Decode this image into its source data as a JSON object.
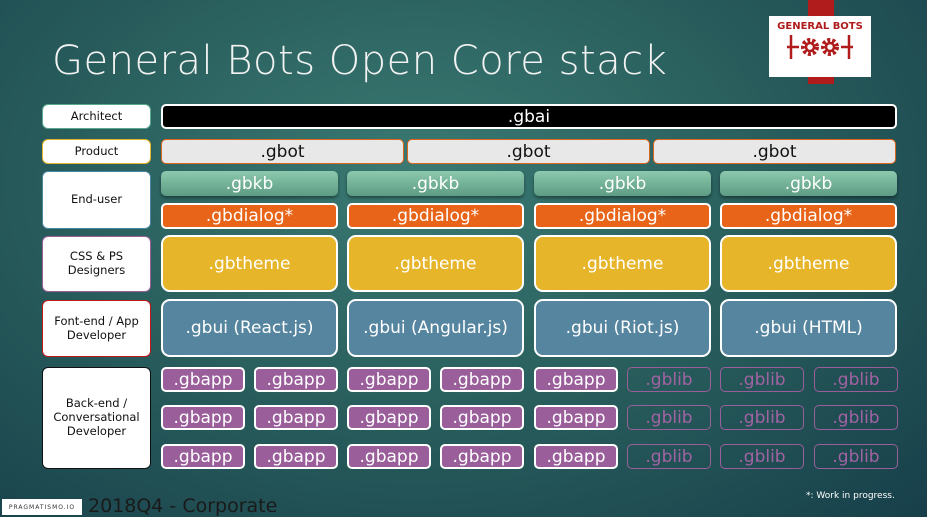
{
  "title": "General Bots Open Core stack",
  "logo": {
    "text": "GENERAL BOTS",
    "icon": "gears-icon",
    "brand_color": "#b01b1b"
  },
  "roles": [
    {
      "label": "Architect",
      "border": "#5aa88f"
    },
    {
      "label": "Product",
      "border": "#e6b52a"
    },
    {
      "label": "End-user",
      "border": "#4a86a0"
    },
    {
      "label": "CSS & PS Designers",
      "border": "#9a5f9b"
    },
    {
      "label": "Font-end / App Developer",
      "border": "#c0181b"
    },
    {
      "label": "Back-end  / Conversational Developer",
      "border": "#111111"
    }
  ],
  "stack": {
    "gbai": ".gbai",
    "gbot": [
      ".gbot",
      ".gbot",
      ".gbot"
    ],
    "gbkb": [
      ".gbkb",
      ".gbkb",
      ".gbkb",
      ".gbkb"
    ],
    "gbdialog": [
      ".gbdialog*",
      ".gbdialog*",
      ".gbdialog*",
      ".gbdialog*"
    ],
    "gbtheme": [
      ".gbtheme",
      ".gbtheme",
      ".gbtheme",
      ".gbtheme"
    ],
    "gbui": [
      ".gbui (React.js)",
      ".gbui (Angular.js)",
      ".gbui (Riot.js)",
      ".gbui (HTML)"
    ],
    "packages": [
      [
        ".gbapp",
        ".gbapp",
        ".gbapp",
        ".gbapp",
        ".gbapp",
        ".gblib",
        ".gblib",
        ".gblib"
      ],
      [
        ".gbapp",
        ".gbapp",
        ".gbapp",
        ".gbapp",
        ".gbapp",
        ".gblib",
        ".gblib",
        ".gblib"
      ],
      [
        ".gbapp",
        ".gbapp",
        ".gbapp",
        ".gbapp",
        ".gbapp",
        ".gblib",
        ".gblib",
        ".gblib"
      ]
    ]
  },
  "footer": {
    "brand": "PRAGMATISMO.IO",
    "text": "2018Q4 - Corporate",
    "note": "*: Work in progress."
  }
}
